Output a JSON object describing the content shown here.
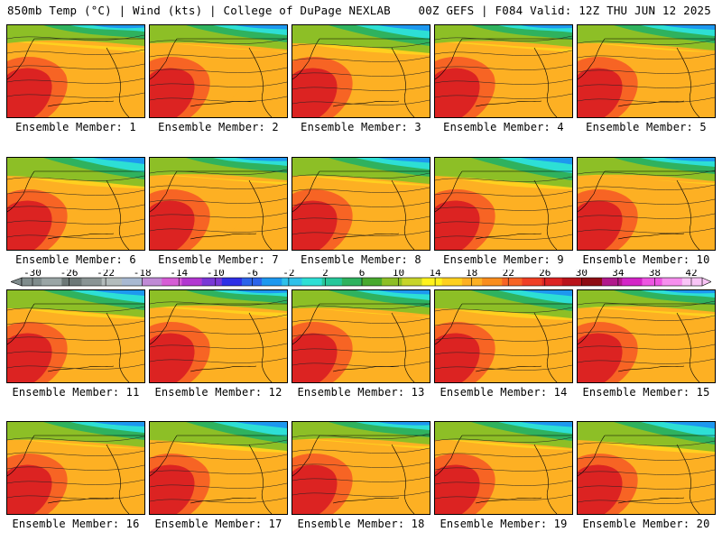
{
  "header": {
    "left": "850mb Temp (°C) | Wind (kts) | College of DuPage NEXLAB",
    "right": "00Z GEFS | F084 Valid: 12Z THU JUN 12 2025"
  },
  "colorbar": {
    "tick_labels": [
      "-30",
      "-26",
      "-22",
      "-18",
      "-14",
      "-10",
      "-6",
      "-2",
      "2",
      "6",
      "10",
      "14",
      "18",
      "22",
      "26",
      "30",
      "34",
      "38",
      "42"
    ],
    "colors": [
      "#7f8c8c",
      "#9aa5a5",
      "#6d7877",
      "#8a9494",
      "#b3bcbc",
      "#a8b9d2",
      "#c08ad6",
      "#d65cd6",
      "#b236d1",
      "#7a37d6",
      "#2f2fe6",
      "#2c64ea",
      "#1d98ef",
      "#2ec1ea",
      "#2ddfd5",
      "#26c79a",
      "#2fb25e",
      "#48a92e",
      "#8dbf26",
      "#c7d42a",
      "#fff21c",
      "#fed01f",
      "#fdb023",
      "#f98d1d",
      "#f76424",
      "#ef3f24",
      "#dc2322",
      "#b9131b",
      "#8e0c14",
      "#b1188c",
      "#d424c7",
      "#ee55e2",
      "#f68fee",
      "#f9c4f6"
    ]
  },
  "panels": [
    {
      "label": "Ensemble Member: 1"
    },
    {
      "label": "Ensemble Member: 2"
    },
    {
      "label": "Ensemble Member: 3"
    },
    {
      "label": "Ensemble Member: 4"
    },
    {
      "label": "Ensemble Member: 5"
    },
    {
      "label": "Ensemble Member: 6"
    },
    {
      "label": "Ensemble Member: 7"
    },
    {
      "label": "Ensemble Member: 8"
    },
    {
      "label": "Ensemble Member: 9"
    },
    {
      "label": "Ensemble Member: 10"
    },
    {
      "label": "Ensemble Member: 11"
    },
    {
      "label": "Ensemble Member: 12"
    },
    {
      "label": "Ensemble Member: 13"
    },
    {
      "label": "Ensemble Member: 14"
    },
    {
      "label": "Ensemble Member: 15"
    },
    {
      "label": "Ensemble Member: 16"
    },
    {
      "label": "Ensemble Member: 17"
    },
    {
      "label": "Ensemble Member: 18"
    },
    {
      "label": "Ensemble Member: 19"
    },
    {
      "label": "Ensemble Member: 20"
    }
  ]
}
